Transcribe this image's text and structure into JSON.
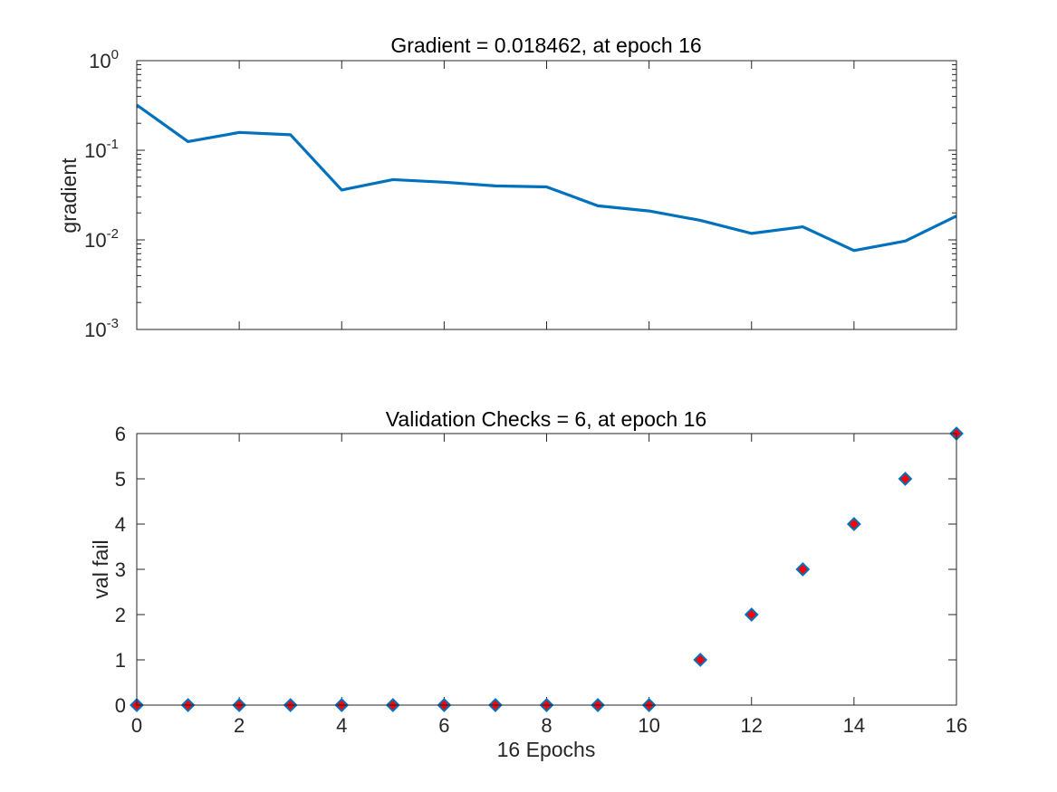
{
  "colors": {
    "line": "#0072BD",
    "marker_edge": "#0072BD",
    "marker_fill": "#FF0000",
    "axis": "#262626"
  },
  "chart_data": [
    {
      "type": "line",
      "title": "Gradient = 0.018462, at epoch 16",
      "xlabel": "",
      "ylabel": "gradient",
      "yscale": "log",
      "xlim": [
        0,
        16
      ],
      "ylim": [
        0.001,
        1
      ],
      "x": [
        0,
        1,
        2,
        3,
        4,
        5,
        6,
        7,
        8,
        9,
        10,
        11,
        12,
        13,
        14,
        15,
        16
      ],
      "series": [
        {
          "name": "gradient",
          "values": [
            0.32,
            0.125,
            0.158,
            0.149,
            0.036,
            0.047,
            0.044,
            0.04,
            0.039,
            0.024,
            0.021,
            0.0165,
            0.0118,
            0.014,
            0.0076,
            0.0097,
            0.018462
          ]
        }
      ],
      "xticks": [
        0,
        2,
        4,
        6,
        8,
        10,
        12,
        14,
        16
      ],
      "yticks": [
        {
          "value": 1,
          "base": "10",
          "exp": "0"
        },
        {
          "value": 0.1,
          "base": "10",
          "exp": "-1"
        },
        {
          "value": 0.01,
          "base": "10",
          "exp": "-2"
        },
        {
          "value": 0.001,
          "base": "10",
          "exp": "-3"
        }
      ],
      "show_xtick_labels": false
    },
    {
      "type": "scatter",
      "title": "Validation Checks = 6, at epoch 16",
      "xlabel": "16 Epochs",
      "ylabel": "val fail",
      "yscale": "linear",
      "xlim": [
        0,
        16
      ],
      "ylim": [
        0,
        6
      ],
      "x": [
        0,
        1,
        2,
        3,
        4,
        5,
        6,
        7,
        8,
        9,
        10,
        11,
        12,
        13,
        14,
        15,
        16
      ],
      "series": [
        {
          "name": "val fail",
          "values": [
            0,
            0,
            0,
            0,
            0,
            0,
            0,
            0,
            0,
            0,
            0,
            1,
            2,
            3,
            4,
            5,
            6
          ]
        }
      ],
      "xticks": [
        0,
        2,
        4,
        6,
        8,
        10,
        12,
        14,
        16
      ],
      "yticks": [
        0,
        1,
        2,
        3,
        4,
        5,
        6
      ],
      "show_xtick_labels": true
    }
  ]
}
